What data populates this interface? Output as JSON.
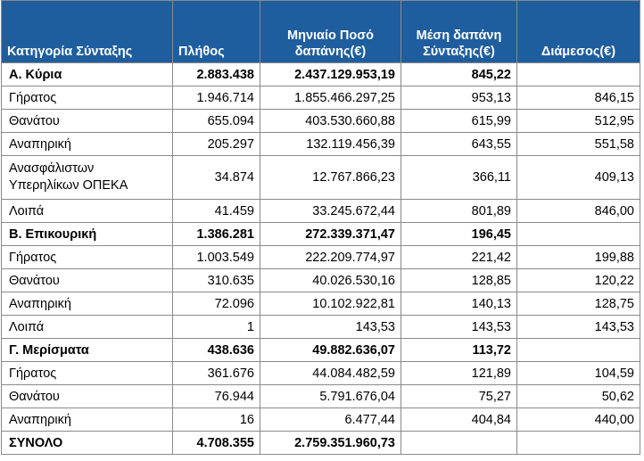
{
  "headers": [
    "Κατηγορία Σύνταξης",
    "Πλήθος",
    "Μηνιαίο Ποσό δαπάνης(€)",
    "Μέση δαπάνη Σύνταξης(€)",
    "Διάμεσος(€)"
  ],
  "rows": [
    {
      "label": "Α. Κύρια",
      "count": "2.883.438",
      "amount": "2.437.129.953,19",
      "mean": "845,22",
      "median": "",
      "bold": true
    },
    {
      "label": "Γήρατος",
      "count": "1.946.714",
      "amount": "1.855.466.297,25",
      "mean": "953,13",
      "median": "846,15"
    },
    {
      "label": "Θανάτου",
      "count": "655.094",
      "amount": "403.530.660,88",
      "mean": "615,99",
      "median": "512,95"
    },
    {
      "label": "Αναπηρική",
      "count": "205.297",
      "amount": "132.119.456,39",
      "mean": "643,55",
      "median": "551,58"
    },
    {
      "label": "Ανασφάλιστων Υπερηλίκων ΟΠΕΚΑ",
      "count": "34.874",
      "amount": "12.767.866,23",
      "mean": "366,11",
      "median": "409,13",
      "tall": true
    },
    {
      "label": "Λοιπά",
      "count": "41.459",
      "amount": "33.245.672,44",
      "mean": "801,89",
      "median": "846,00"
    },
    {
      "label": "Β. Επικουρική",
      "count": "1.386.281",
      "amount": "272.339.371,47",
      "mean": "196,45",
      "median": "",
      "bold": true
    },
    {
      "label": "Γήρατος",
      "count": "1.003.549",
      "amount": "222.209.774,97",
      "mean": "221,42",
      "median": "199,88"
    },
    {
      "label": "Θανάτου",
      "count": "310.635",
      "amount": "40.026.530,16",
      "mean": "128,85",
      "median": "120,22"
    },
    {
      "label": "Αναπηρική",
      "count": "72.096",
      "amount": "10.102.922,81",
      "mean": "140,13",
      "median": "128,75"
    },
    {
      "label": "Λοιπά",
      "count": "1",
      "amount": "143,53",
      "mean": "143,53",
      "median": "143,53"
    },
    {
      "label": "Γ. Μερίσματα",
      "count": "438.636",
      "amount": "49.882.636,07",
      "mean": "113,72",
      "median": "",
      "bold": true
    },
    {
      "label": "Γήρατος",
      "count": "361.676",
      "amount": "44.084.482,59",
      "mean": "121,89",
      "median": "104,59"
    },
    {
      "label": "Θανάτου",
      "count": "76.944",
      "amount": "5.791.676,04",
      "mean": "75,27",
      "median": "50,62"
    },
    {
      "label": "Αναπηρική",
      "count": "16",
      "amount": "6.477,44",
      "mean": "404,84",
      "median": "440,00"
    },
    {
      "label": "ΣΥΝΟΛΟ",
      "count": "4.708.355",
      "amount": "2.759.351.960,73",
      "mean": "",
      "median": "",
      "bold": true
    }
  ]
}
